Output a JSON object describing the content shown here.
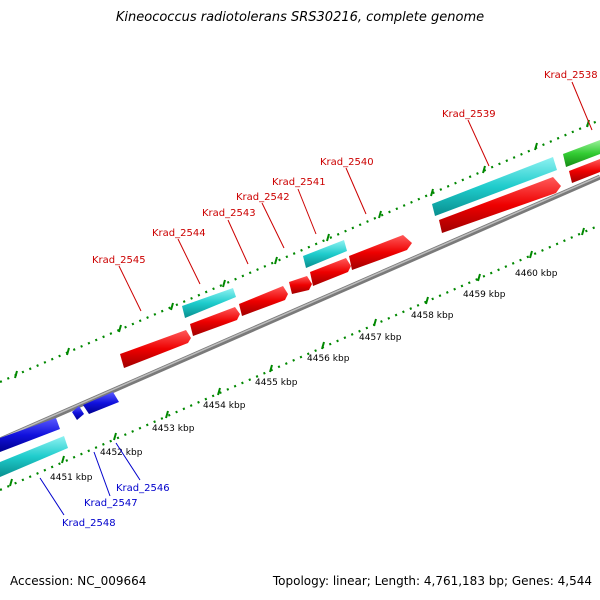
{
  "title": "Kineococcus radiotolerans SRS30216, complete genome",
  "footer": {
    "accession": "Accession: NC_009664",
    "summary": "Topology: linear; Length: 4,761,183 bp; Genes: 4,544"
  },
  "colors": {
    "forward_cds": "#ff0000",
    "forward_gene": "#00cccc",
    "reverse_cds": "#0000ee",
    "reverse_gene": "#00cccc",
    "other_feature": "#33cc33",
    "backbone": "#999999",
    "ticks": "#008800",
    "forward_label": "#cc0000",
    "reverse_label": "#0000cc"
  },
  "axis": {
    "unit": "kbp",
    "ticks": [
      4451,
      4452,
      4453,
      4454,
      4455,
      4456,
      4457,
      4458,
      4459,
      4460
    ]
  },
  "genes": [
    {
      "name": "Krad_2538",
      "strand": "forward"
    },
    {
      "name": "Krad_2539",
      "strand": "forward"
    },
    {
      "name": "Krad_2540",
      "strand": "forward"
    },
    {
      "name": "Krad_2541",
      "strand": "forward"
    },
    {
      "name": "Krad_2542",
      "strand": "forward"
    },
    {
      "name": "Krad_2543",
      "strand": "forward"
    },
    {
      "name": "Krad_2544",
      "strand": "forward"
    },
    {
      "name": "Krad_2545",
      "strand": "forward"
    },
    {
      "name": "Krad_2546",
      "strand": "reverse"
    },
    {
      "name": "Krad_2547",
      "strand": "reverse"
    },
    {
      "name": "Krad_2548",
      "strand": "reverse"
    }
  ]
}
